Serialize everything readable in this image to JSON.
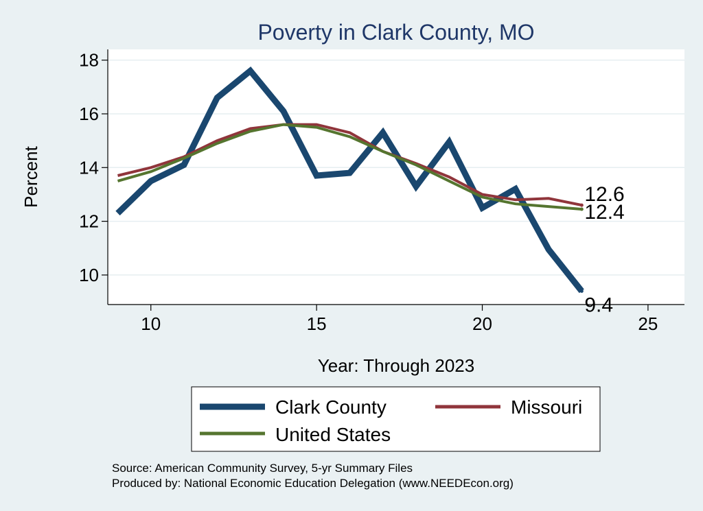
{
  "chart_data": {
    "type": "line",
    "title": "Poverty in Clark County, MO",
    "xlabel": "Year: Through 2023",
    "ylabel": "Percent",
    "xlim": [
      8.7,
      26.1
    ],
    "ylim": [
      8.9,
      18.4
    ],
    "xticks": [
      10,
      15,
      20,
      25
    ],
    "yticks": [
      10,
      12,
      14,
      16,
      18
    ],
    "grid": true,
    "x": [
      9,
      10,
      11,
      12,
      13,
      14,
      15,
      16,
      17,
      18,
      19,
      20,
      21,
      22,
      23
    ],
    "series": [
      {
        "name": "Clark County",
        "color": "#1a476f",
        "values": [
          12.3,
          13.5,
          14.1,
          16.6,
          17.6,
          16.1,
          13.7,
          13.8,
          15.3,
          13.3,
          14.95,
          12.5,
          13.2,
          10.95,
          9.4
        ],
        "end_label": "9.4"
      },
      {
        "name": "Missouri",
        "color": "#90353b",
        "values": [
          13.7,
          14.0,
          14.4,
          15.0,
          15.45,
          15.6,
          15.6,
          15.3,
          14.6,
          14.15,
          13.65,
          13.0,
          12.8,
          12.85,
          12.6
        ],
        "end_label": "12.6"
      },
      {
        "name": "United States",
        "color": "#55752f",
        "values": [
          13.5,
          13.85,
          14.35,
          14.9,
          15.35,
          15.6,
          15.5,
          15.15,
          14.6,
          14.1,
          13.5,
          12.9,
          12.65,
          12.55,
          12.45
        ],
        "end_label": "12.4"
      }
    ],
    "legend": {
      "position": "bottom",
      "entries": [
        "Clark County",
        "Missouri",
        "United States"
      ]
    },
    "notes": [
      "Source: American Community Survey, 5-yr Summary Files",
      "Produced by: National Economic Education Delegation (www.NEEDEcon.org)"
    ]
  }
}
